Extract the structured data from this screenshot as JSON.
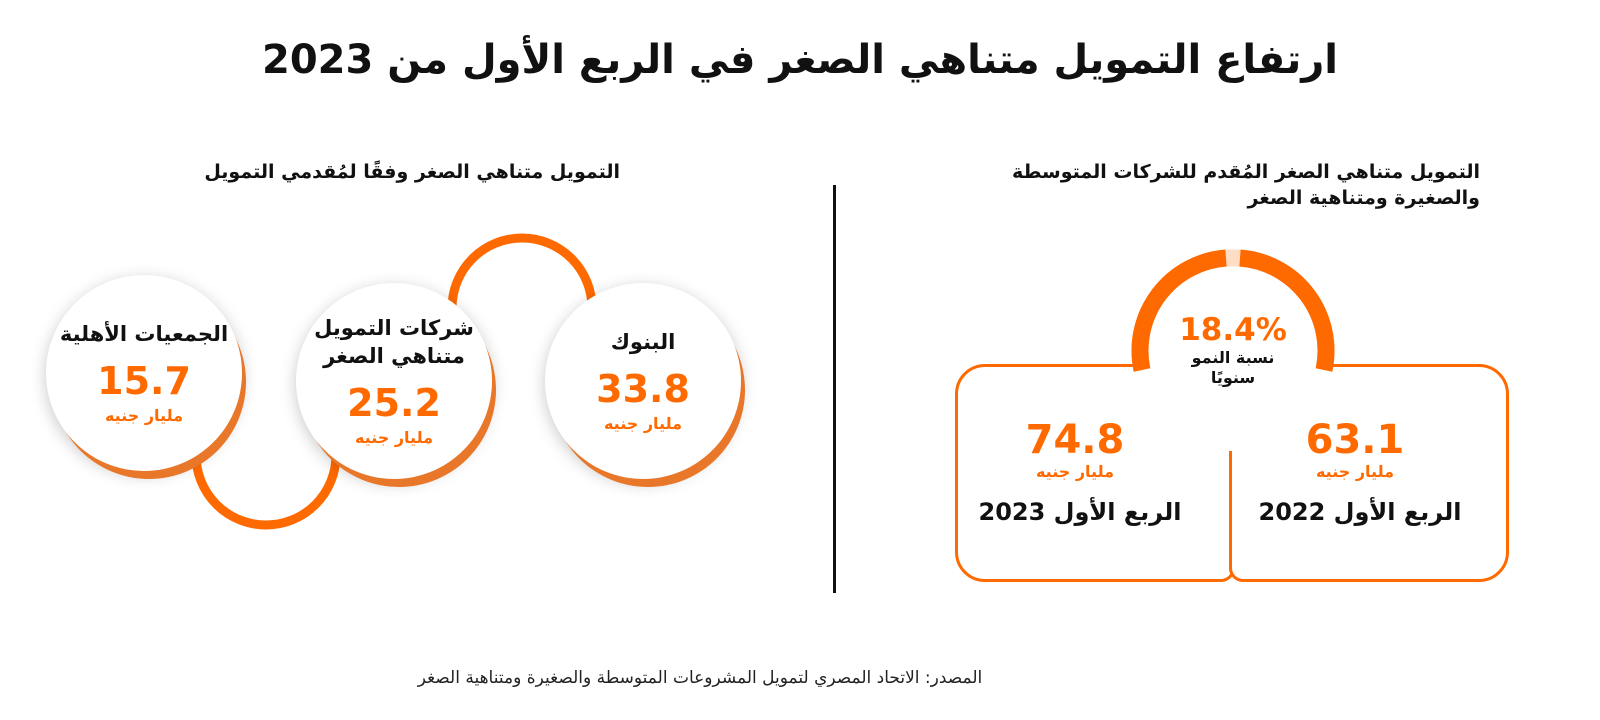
{
  "title": "ارتفاع التمويل متناهي الصغر في الربع الأول من 2023",
  "left_section": {
    "title": "التمويل متناهي الصغر وفقًا لمُقدمي التمويل",
    "providers": [
      {
        "label": "البنوك",
        "value": "33.8",
        "unit": "مليار جنيه"
      },
      {
        "label": "شركات التمويل متناهي الصغر",
        "value": "25.2",
        "unit": "مليار جنيه"
      },
      {
        "label": "الجمعيات الأهلية",
        "value": "15.7",
        "unit": "مليار جنيه"
      }
    ]
  },
  "right_section": {
    "title": "التمويل متناهي الصغر المُقدم للشركات المتوسطة والصغيرة ومتناهية الصغر",
    "periods": [
      {
        "period": "الربع الأول 2022",
        "value": "63.1",
        "unit": "مليار جنيه"
      },
      {
        "period": "الربع الأول 2023",
        "value": "74.8",
        "unit": "مليار جنيه"
      }
    ],
    "growth": {
      "value": "18.4%",
      "label": "نسبة النمو سنويًا",
      "fraction": 0.184
    }
  },
  "source": "المصدر: الاتحاد المصري لتمويل المشروعات المتوسطة والصغيرة ومتناهية الصغر",
  "colors": {
    "accent": "#ff6a00",
    "text": "#111111"
  }
}
